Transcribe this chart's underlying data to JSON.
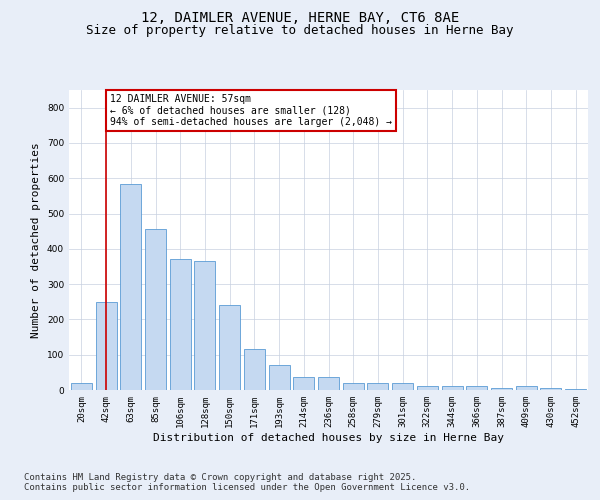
{
  "title_line1": "12, DAIMLER AVENUE, HERNE BAY, CT6 8AE",
  "title_line2": "Size of property relative to detached houses in Herne Bay",
  "xlabel": "Distribution of detached houses by size in Herne Bay",
  "ylabel": "Number of detached properties",
  "categories": [
    "20sqm",
    "42sqm",
    "63sqm",
    "85sqm",
    "106sqm",
    "128sqm",
    "150sqm",
    "171sqm",
    "193sqm",
    "214sqm",
    "236sqm",
    "258sqm",
    "279sqm",
    "301sqm",
    "322sqm",
    "344sqm",
    "366sqm",
    "387sqm",
    "409sqm",
    "430sqm",
    "452sqm"
  ],
  "values": [
    20,
    248,
    585,
    455,
    370,
    365,
    240,
    115,
    70,
    38,
    38,
    20,
    20,
    20,
    10,
    10,
    10,
    5,
    10,
    5,
    3
  ],
  "bar_color": "#c5d9f1",
  "bar_edge_color": "#5b9bd5",
  "ylim": [
    0,
    850
  ],
  "yticks": [
    0,
    100,
    200,
    300,
    400,
    500,
    600,
    700,
    800
  ],
  "vline_x": 1,
  "vline_color": "#cc0000",
  "annotation_text": "12 DAIMLER AVENUE: 57sqm\n← 6% of detached houses are smaller (128)\n94% of semi-detached houses are larger (2,048) →",
  "annotation_box_color": "#ffffff",
  "annotation_border_color": "#cc0000",
  "footer_text": "Contains HM Land Registry data © Crown copyright and database right 2025.\nContains public sector information licensed under the Open Government Licence v3.0.",
  "bg_color": "#e8eef8",
  "plot_bg_color": "#ffffff",
  "grid_color": "#c8d0e0",
  "title_fontsize": 10,
  "subtitle_fontsize": 9,
  "tick_fontsize": 6.5,
  "ylabel_fontsize": 8,
  "xlabel_fontsize": 8,
  "footer_fontsize": 6.5,
  "annot_fontsize": 7
}
